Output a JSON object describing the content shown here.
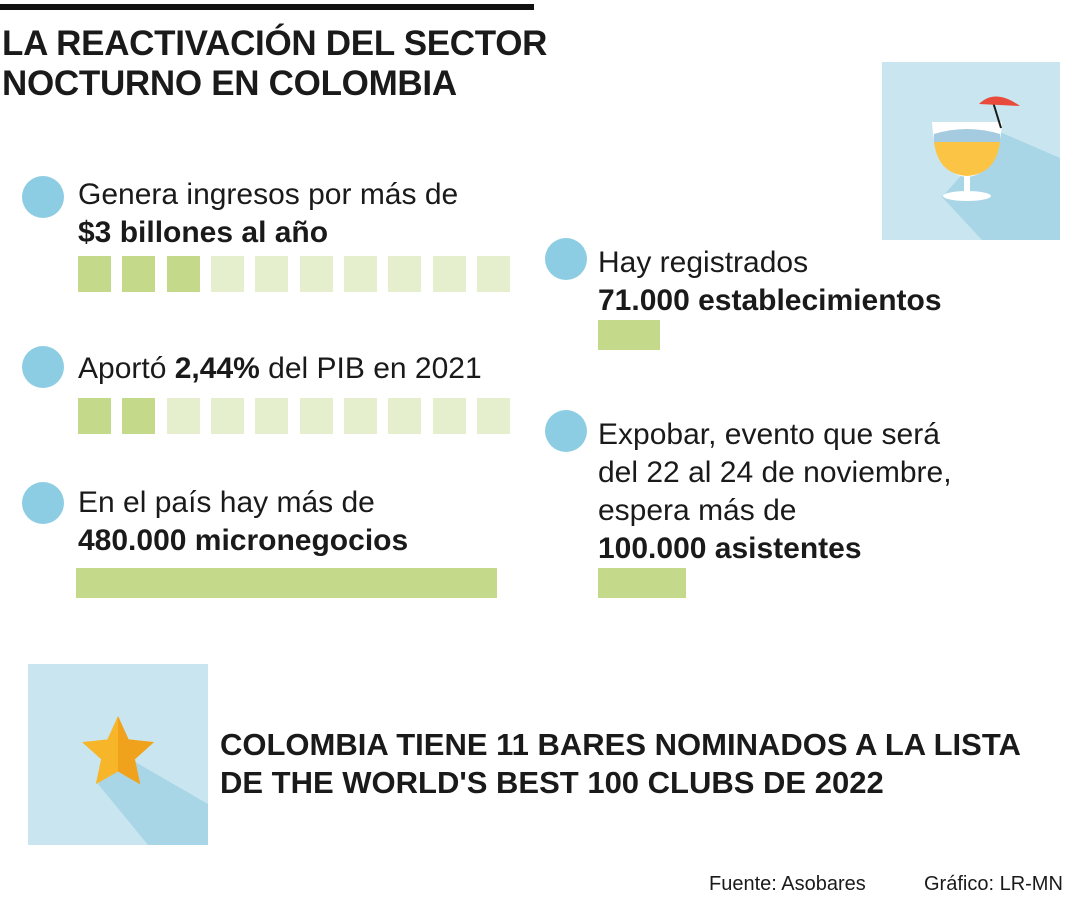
{
  "title": "LA REACTIVACIÓN DEL SECTOR NOCTURNO EN COLOMBIA",
  "colors": {
    "dot": "#8dcde3",
    "block_filled": "#c5d98a",
    "block_empty": "#e6efcd",
    "bar": "#c5d98a",
    "panel": "#c9e6f0",
    "shadow": "#a8d6e6",
    "star": "#f7b52a"
  },
  "stats": [
    {
      "line1": "Genera ingresos por más de",
      "bold": "$3 billones al año",
      "indicator": {
        "type": "blocks",
        "filled": 3,
        "total": 10
      }
    },
    {
      "prefix": "Aportó ",
      "bold": "2,44%",
      "suffix": " del PIB en 2021",
      "indicator": {
        "type": "blocks",
        "filled": 2,
        "total": 10
      }
    },
    {
      "line1": "En el país hay más de",
      "bold": "480.000 micronegocios",
      "indicator": {
        "type": "bar",
        "value": 480000
      }
    },
    {
      "line1": "Hay registrados",
      "bold": "71.000 establecimientos",
      "indicator": {
        "type": "bar",
        "value": 71000
      }
    },
    {
      "line1": "Expobar, evento que será",
      "line2": "del 22 al 24 de noviembre,",
      "line3": "espera más de",
      "bold": "100.000 asistentes",
      "indicator": {
        "type": "bar",
        "value": 100000
      }
    }
  ],
  "banner": "COLOMBIA TIENE 11 BARES NOMINADOS A LA LISTA DE THE WORLD'S BEST 100 CLUBS DE 2022",
  "footer": {
    "source": "Fuente: Asobares",
    "credit": "Gráfico: LR-MN"
  },
  "icons": {
    "cocktail": "cocktail-glass-icon",
    "star": "star-icon"
  },
  "chart_data": {
    "type": "bar",
    "categories": [
      "480.000 micronegocios",
      "71.000 establecimientos",
      "100.000 asistentes"
    ],
    "values": [
      480000,
      71000,
      100000
    ]
  }
}
